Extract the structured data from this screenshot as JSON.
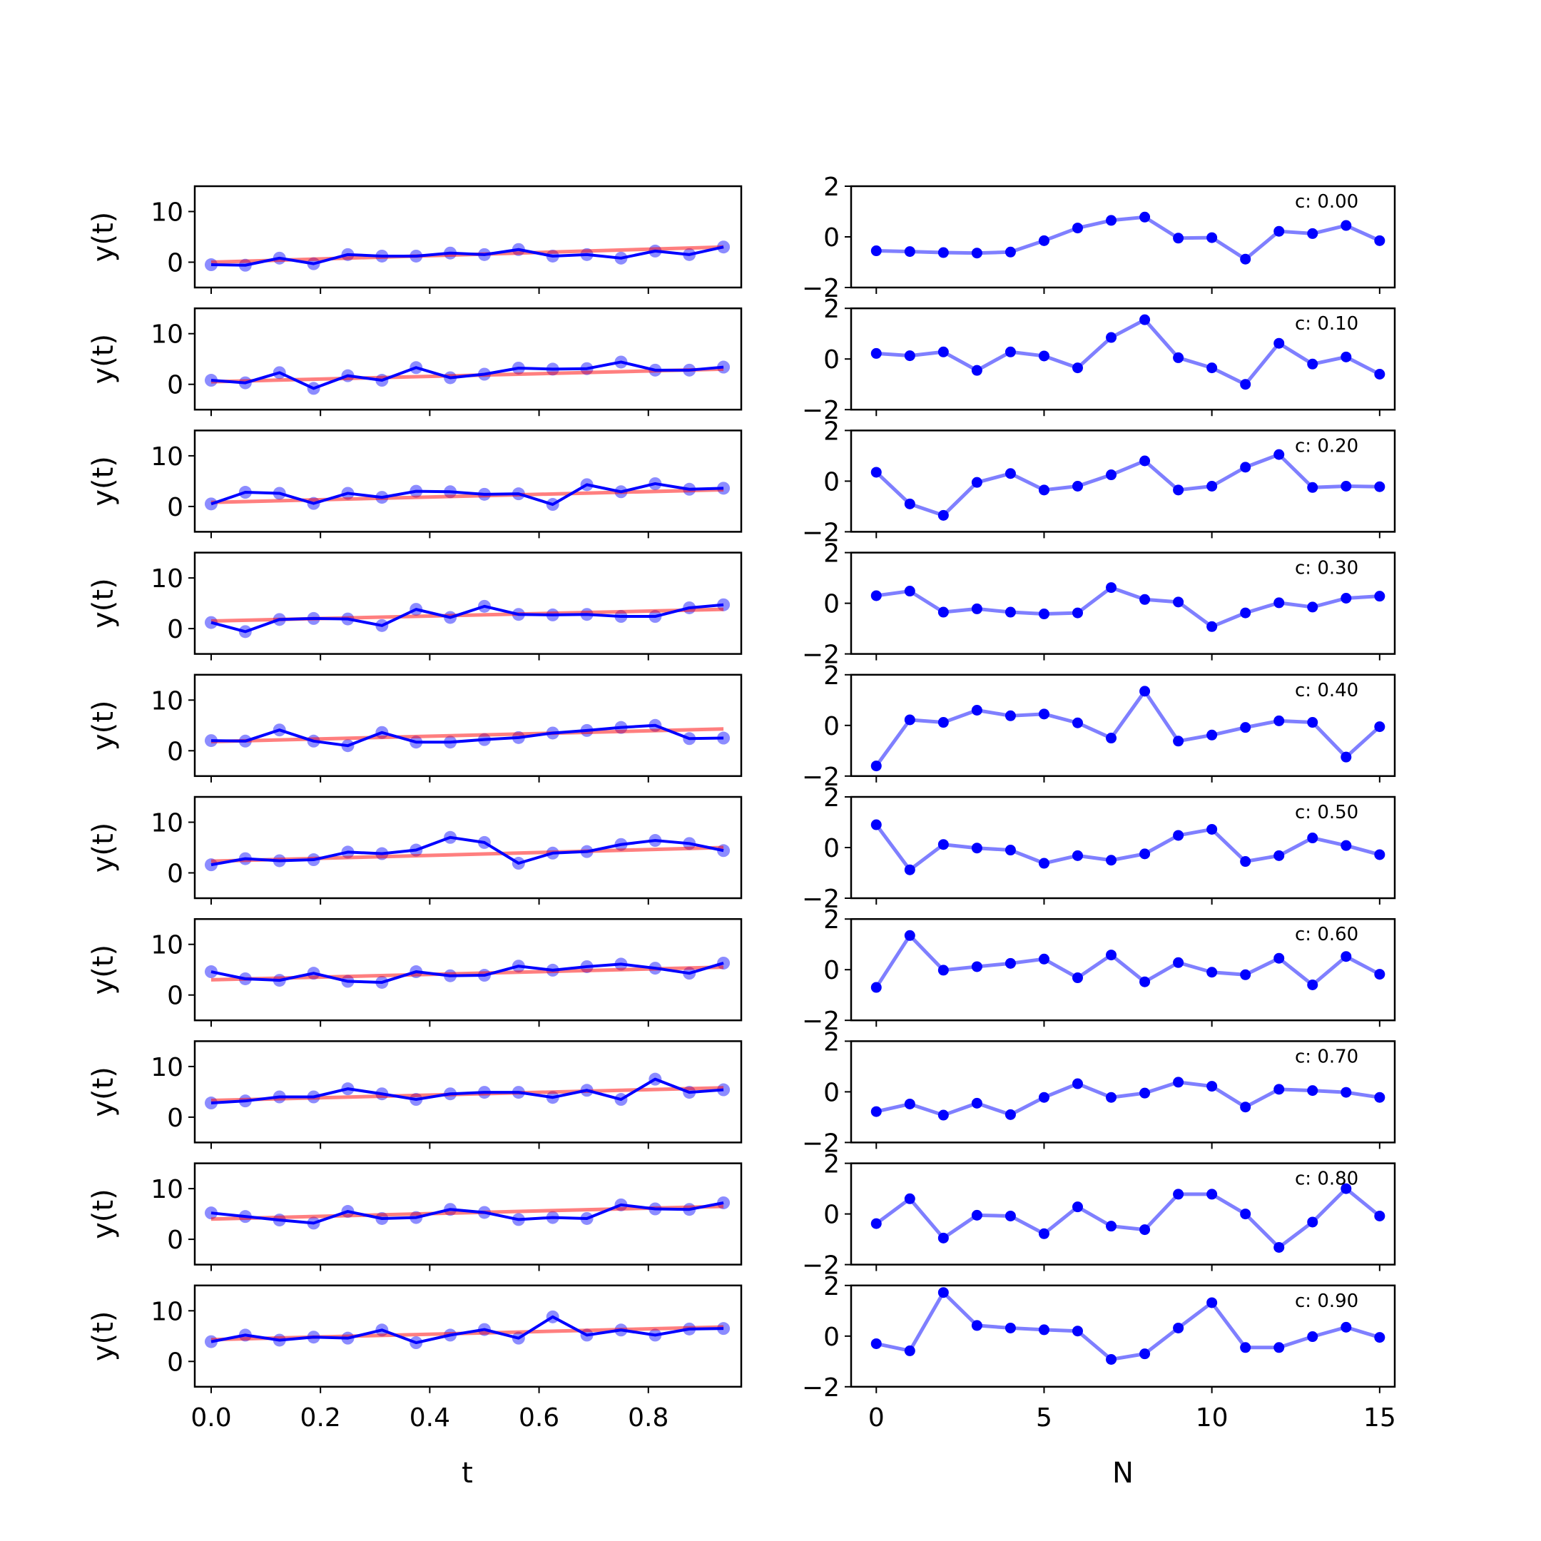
{
  "chart_data": [
    {
      "type": "line",
      "panel": "left",
      "ylabel": "y(t)",
      "xlabel": "t",
      "xlim": [
        -0.03,
        0.97
      ],
      "ylim": [
        -5,
        15
      ],
      "yticks": [
        "0",
        "10"
      ],
      "xticks": [
        "0.0",
        "0.2",
        "0.4",
        "0.6",
        "0.8"
      ],
      "x": [
        0.0,
        0.0625,
        0.125,
        0.1875,
        0.25,
        0.3125,
        0.375,
        0.4375,
        0.5,
        0.5625,
        0.625,
        0.6875,
        0.75,
        0.8125,
        0.875,
        0.9375
      ],
      "colors": {
        "observed": "#0000ff",
        "fit": "#ff0000"
      },
      "rows": [
        {
          "values": [
            -0.5,
            -0.6,
            0.8,
            -0.3,
            1.5,
            1.2,
            1.2,
            1.8,
            1.5,
            2.5,
            1.2,
            1.5,
            0.8,
            2.2,
            1.5,
            3.0
          ],
          "fit": [
            0.0,
            3.0
          ]
        },
        {
          "values": [
            0.8,
            0.3,
            2.3,
            -0.8,
            1.7,
            0.8,
            3.3,
            1.3,
            2.0,
            3.2,
            3.0,
            3.1,
            4.4,
            2.8,
            2.8,
            3.4
          ],
          "fit": [
            0.5,
            3.0
          ]
        },
        {
          "values": [
            0.5,
            2.8,
            2.6,
            0.6,
            2.6,
            1.8,
            3.0,
            2.9,
            2.4,
            2.5,
            0.4,
            4.3,
            2.9,
            4.5,
            3.4,
            3.6
          ],
          "fit": [
            0.8,
            3.3
          ]
        },
        {
          "values": [
            1.2,
            -0.6,
            1.8,
            2.0,
            1.9,
            0.6,
            3.8,
            2.2,
            4.4,
            2.8,
            2.7,
            2.8,
            2.4,
            2.4,
            4.1,
            4.7
          ],
          "fit": [
            1.5,
            3.8
          ]
        },
        {
          "values": [
            2.0,
            1.9,
            4.1,
            1.9,
            1.0,
            3.6,
            1.7,
            1.7,
            2.2,
            2.6,
            3.5,
            4.0,
            4.6,
            5.0,
            2.4,
            2.5
          ],
          "fit": [
            1.8,
            4.3
          ]
        },
        {
          "values": [
            1.6,
            2.8,
            2.4,
            2.6,
            4.1,
            3.8,
            4.5,
            7.0,
            6.0,
            1.9,
            3.9,
            4.2,
            5.6,
            6.4,
            5.8,
            4.4
          ],
          "fit": [
            2.3,
            5.0
          ]
        },
        {
          "values": [
            4.6,
            3.2,
            2.9,
            4.3,
            2.7,
            2.5,
            4.6,
            3.8,
            3.9,
            5.7,
            4.9,
            5.6,
            6.1,
            5.3,
            4.3,
            6.3
          ],
          "fit": [
            3.0,
            5.5
          ]
        },
        {
          "values": [
            2.8,
            3.2,
            4.0,
            4.0,
            5.6,
            4.6,
            3.5,
            4.6,
            4.9,
            4.9,
            3.9,
            5.3,
            3.5,
            7.5,
            4.9,
            5.4
          ],
          "fit": [
            3.3,
            5.8
          ]
        },
        {
          "values": [
            5.2,
            4.5,
            3.8,
            3.2,
            5.5,
            4.1,
            4.3,
            5.9,
            5.3,
            3.9,
            4.3,
            4.1,
            6.8,
            6.0,
            5.9,
            7.2
          ],
          "fit": [
            4.0,
            6.5
          ]
        },
        {
          "values": [
            3.9,
            5.2,
            4.2,
            4.8,
            4.6,
            6.2,
            3.7,
            5.2,
            6.3,
            4.6,
            8.8,
            5.2,
            6.2,
            5.2,
            6.4,
            6.5
          ],
          "fit": [
            4.3,
            6.8
          ]
        }
      ]
    },
    {
      "type": "line",
      "panel": "right",
      "xlabel": "N",
      "xlim": [
        -0.75,
        15.45
      ],
      "ylim": [
        -2,
        2
      ],
      "yticks": [
        "−2",
        "0",
        "2"
      ],
      "xticks": [
        "0",
        "5",
        "10",
        "15"
      ],
      "x": [
        0,
        1,
        2,
        3,
        4,
        5,
        6,
        7,
        8,
        9,
        10,
        11,
        12,
        13,
        14,
        15
      ],
      "colors": {
        "line": "#7f7fff",
        "marker": "#0000ff"
      },
      "rows": [
        {
          "label": "c: 0.00",
          "values": [
            -0.55,
            -0.58,
            -0.62,
            -0.64,
            -0.6,
            -0.15,
            0.35,
            0.65,
            0.78,
            -0.05,
            -0.03,
            -0.88,
            0.22,
            0.13,
            0.45,
            -0.15
          ]
        },
        {
          "label": "c: 0.10",
          "values": [
            0.22,
            0.13,
            0.28,
            -0.45,
            0.28,
            0.12,
            -0.35,
            0.85,
            1.55,
            0.05,
            -0.35,
            -1.0,
            0.62,
            -0.2,
            0.08,
            -0.6
          ]
        },
        {
          "label": "c: 0.20",
          "values": [
            0.35,
            -0.9,
            -1.35,
            -0.05,
            0.3,
            -0.35,
            -0.2,
            0.25,
            0.8,
            -0.35,
            -0.2,
            0.55,
            1.05,
            -0.25,
            -0.2,
            -0.22
          ]
        },
        {
          "label": "c: 0.30",
          "values": [
            0.3,
            0.48,
            -0.35,
            -0.22,
            -0.35,
            -0.42,
            -0.38,
            0.62,
            0.15,
            0.05,
            -0.92,
            -0.38,
            0.02,
            -0.15,
            0.2,
            0.28
          ]
        },
        {
          "label": "c: 0.40",
          "values": [
            -1.6,
            0.22,
            0.12,
            0.6,
            0.38,
            0.45,
            0.1,
            -0.5,
            1.35,
            -0.62,
            -0.38,
            -0.08,
            0.18,
            0.12,
            -1.25,
            -0.05
          ]
        },
        {
          "label": "c: 0.50",
          "values": [
            0.9,
            -0.88,
            0.12,
            -0.02,
            -0.1,
            -0.62,
            -0.32,
            -0.5,
            -0.25,
            0.48,
            0.72,
            -0.55,
            -0.32,
            0.38,
            0.08,
            -0.28
          ]
        },
        {
          "label": "c: 0.60",
          "values": [
            -0.7,
            1.35,
            -0.02,
            0.12,
            0.25,
            0.42,
            -0.32,
            0.58,
            -0.48,
            0.28,
            -0.1,
            -0.2,
            0.45,
            -0.6,
            0.52,
            -0.18
          ]
        },
        {
          "label": "c: 0.70",
          "values": [
            -0.78,
            -0.48,
            -0.92,
            -0.45,
            -0.9,
            -0.22,
            0.32,
            -0.22,
            -0.05,
            0.38,
            0.22,
            -0.6,
            0.1,
            0.05,
            -0.02,
            -0.22
          ]
        },
        {
          "label": "c: 0.80",
          "values": [
            -0.38,
            0.6,
            -0.95,
            -0.05,
            -0.08,
            -0.78,
            0.28,
            -0.48,
            -0.62,
            0.78,
            0.78,
            0.0,
            -1.32,
            -0.32,
            1.0,
            -0.08
          ]
        },
        {
          "label": "c: 0.90",
          "values": [
            -0.3,
            -0.58,
            1.72,
            0.42,
            0.32,
            0.25,
            0.2,
            -0.92,
            -0.7,
            0.32,
            1.32,
            -0.45,
            -0.45,
            -0.02,
            0.35,
            -0.05
          ]
        }
      ]
    }
  ]
}
